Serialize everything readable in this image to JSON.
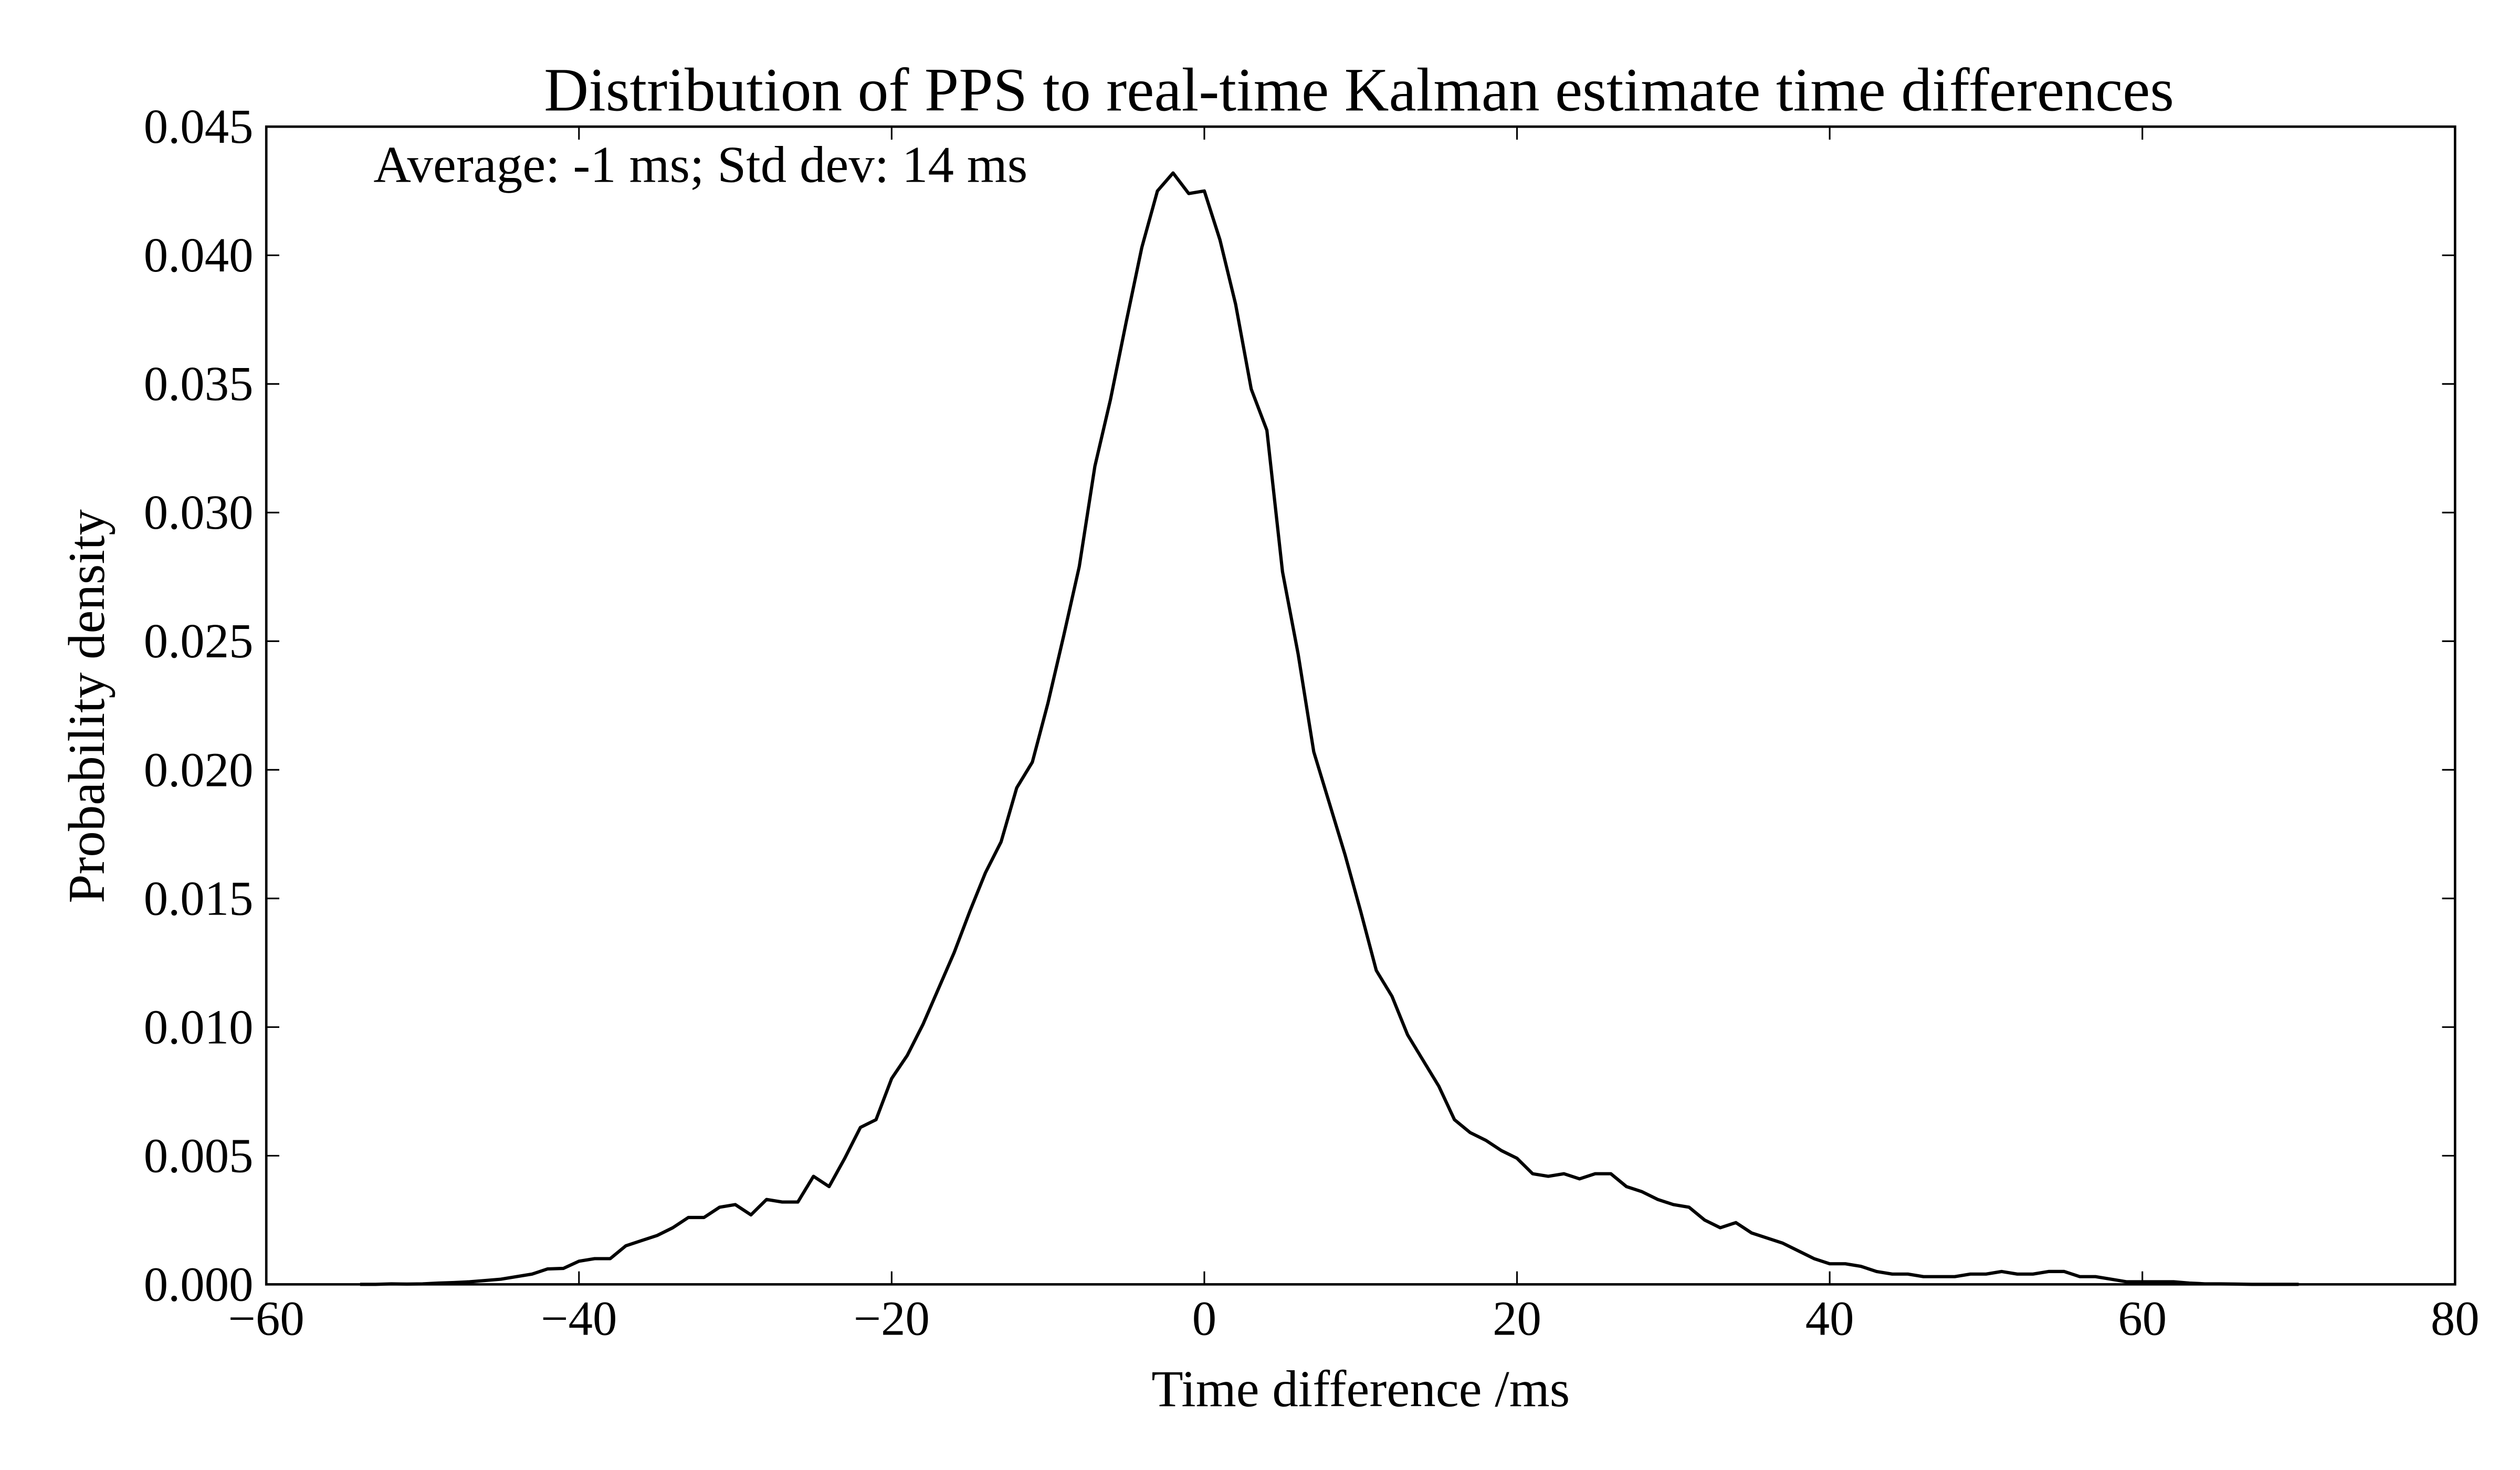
{
  "chart_data": {
    "type": "line",
    "title": "Distribution of PPS to real-time Kalman estimate time differences",
    "annotation": "Average: -1 ms; Std dev: 14 ms",
    "x_label": "Time difference /ms",
    "y_label": "Probability density",
    "x": [
      -54,
      -53,
      -52,
      -51,
      -50,
      -49,
      -48,
      -47,
      -46,
      -45,
      -44,
      -43,
      -42,
      -41,
      -40,
      -39,
      -38,
      -37,
      -36,
      -35,
      -34,
      -33,
      -32,
      -31,
      -30,
      -29,
      -28,
      -27,
      -26,
      -25,
      -24,
      -23,
      -22,
      -21,
      -20,
      -19,
      -18,
      -17,
      -16,
      -15,
      -14,
      -13,
      -12,
      -11,
      -10,
      -9,
      -8,
      -7,
      -6,
      -5,
      -4,
      -3,
      -2,
      -1,
      0,
      1,
      2,
      3,
      4,
      5,
      6,
      7,
      8,
      9,
      10,
      11,
      12,
      13,
      14,
      15,
      16,
      17,
      18,
      19,
      20,
      21,
      22,
      23,
      24,
      25,
      26,
      27,
      28,
      29,
      30,
      31,
      32,
      33,
      34,
      35,
      36,
      37,
      38,
      39,
      40,
      41,
      42,
      43,
      44,
      45,
      46,
      47,
      48,
      49,
      50,
      51,
      52,
      53,
      54,
      55,
      56,
      57,
      58,
      59,
      60,
      61,
      62,
      63,
      64,
      65,
      66,
      67,
      68,
      69,
      70
    ],
    "series": [
      {
        "color": "#000000",
        "values": [
          0,
          0,
          2e-05,
          1e-05,
          2e-05,
          5e-05,
          7e-05,
          0.0001,
          0.00015,
          0.0002,
          0.0003,
          0.0004,
          0.0006,
          0.00062,
          0.0009,
          0.001,
          0.001,
          0.0015,
          0.0017,
          0.0019,
          0.0022,
          0.0026,
          0.0026,
          0.003,
          0.0031,
          0.0027,
          0.0033,
          0.0032,
          0.0032,
          0.0042,
          0.0038,
          0.0049,
          0.0061,
          0.0064,
          0.008,
          0.0089,
          0.0101,
          0.0115,
          0.0129,
          0.0145,
          0.016,
          0.0172,
          0.0193,
          0.0203,
          0.0226,
          0.0252,
          0.0279,
          0.0318,
          0.0344,
          0.0374,
          0.0403,
          0.0425,
          0.0432,
          0.0424,
          0.0425,
          0.0406,
          0.0381,
          0.0348,
          0.0332,
          0.0277,
          0.0245,
          0.0207,
          0.0187,
          0.0167,
          0.0145,
          0.0122,
          0.0112,
          0.0097,
          0.0087,
          0.0077,
          0.0064,
          0.0059,
          0.0056,
          0.0052,
          0.0049,
          0.0043,
          0.0042,
          0.0043,
          0.0041,
          0.0043,
          0.0043,
          0.0038,
          0.0036,
          0.0033,
          0.0031,
          0.003,
          0.0025,
          0.0022,
          0.0024,
          0.002,
          0.0018,
          0.0016,
          0.0013,
          0.001,
          0.0008,
          0.0008,
          0.0007,
          0.0005,
          0.0004,
          0.0004,
          0.0003,
          0.0003,
          0.0003,
          0.0004,
          0.0004,
          0.0005,
          0.0004,
          0.0004,
          0.0005,
          0.0005,
          0.0003,
          0.0003,
          0.0002,
          0.0001,
          0.0001,
          0.0001,
          0.0001,
          5e-05,
          2e-05,
          2e-05,
          1e-05,
          0,
          0,
          0,
          0
        ]
      }
    ],
    "xlim": [
      -60,
      80
    ],
    "xticks": [
      {
        "value": -60,
        "label": "−60"
      },
      {
        "value": -40,
        "label": "−40"
      },
      {
        "value": -20,
        "label": "−20"
      },
      0,
      20,
      40,
      60,
      80
    ],
    "ylim": [
      0,
      0.045
    ],
    "yticks": [
      {
        "value": 0,
        "label": "0.000"
      },
      0.005,
      {
        "value": 0.01,
        "label": "0.010"
      },
      0.015,
      {
        "value": 0.02,
        "label": "0.020"
      },
      0.025,
      {
        "value": 0.03,
        "label": "0.030"
      },
      0.035,
      {
        "value": 0.04,
        "label": "0.040"
      },
      0.045
    ],
    "grid": false
  }
}
